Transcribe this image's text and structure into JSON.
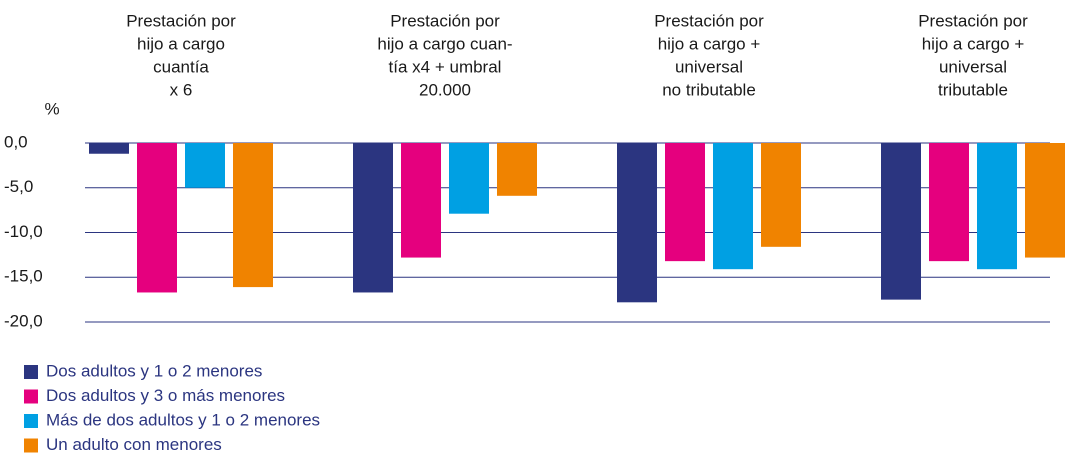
{
  "chart_data": {
    "type": "bar",
    "y_label": "%",
    "categories": [
      [
        "Prestación por",
        "hijo a cargo",
        "cuantía",
        "x 6"
      ],
      [
        "Prestación por",
        "hijo a cargo cuan-",
        "tía x4 + umbral",
        "20.000"
      ],
      [
        "Prestación por",
        "hijo a cargo +",
        "universal",
        "no tributable"
      ],
      [
        "Prestación por",
        "hijo a cargo +",
        "universal",
        "tributable"
      ]
    ],
    "series": [
      {
        "name": "Dos adultos y 1 o 2 menores",
        "color": "#2b3580",
        "values": [
          -1.2,
          -16.7,
          -17.8,
          -17.5
        ]
      },
      {
        "name": "Dos adultos y 3 o más menores",
        "color": "#e5007e",
        "values": [
          -16.7,
          -12.8,
          -13.2,
          -13.2
        ]
      },
      {
        "name": "Más de dos adultos y 1 o 2 menores",
        "color": "#00a0e3",
        "values": [
          -5.0,
          -7.9,
          -14.1,
          -14.1
        ]
      },
      {
        "name": "Un adulto con menores",
        "color": "#f08300",
        "values": [
          -16.1,
          -5.9,
          -11.6,
          -12.8
        ]
      }
    ],
    "ylim": [
      -20,
      0
    ],
    "yticks": [
      {
        "value": 0,
        "label": "0,0"
      },
      {
        "value": -5,
        "label": "-5,0"
      },
      {
        "value": -10,
        "label": "-10,0"
      },
      {
        "value": -15,
        "label": "-15,0"
      },
      {
        "value": -20,
        "label": "-20,0"
      }
    ],
    "grid": true,
    "legend": "bottom-left"
  }
}
